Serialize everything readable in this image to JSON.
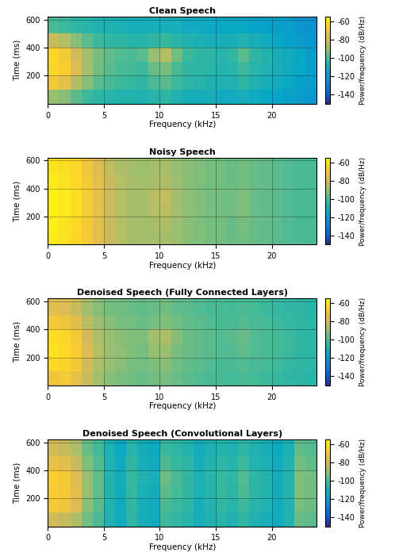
{
  "chart_data": [
    {
      "type": "heatmap",
      "title": "Clean Speech",
      "x_label": "Frequency (kHz)",
      "y_label": "Time (ms)",
      "xlim": [
        0,
        24
      ],
      "ylim": [
        0,
        620
      ],
      "xticks": [
        0,
        5,
        10,
        15,
        20
      ],
      "yticks": [
        200,
        400,
        600
      ],
      "grid": true,
      "x_edges": [
        0,
        1,
        2,
        3,
        4,
        5,
        6,
        7,
        8,
        9,
        10,
        11,
        12,
        13,
        14,
        15,
        16,
        17,
        18,
        19,
        20,
        21,
        22,
        23,
        24
      ],
      "y_edges": [
        0,
        100,
        200,
        300,
        400,
        500,
        620
      ],
      "cells": [
        [
          -90,
          -92,
          -98,
          -102,
          -105,
          -106,
          -107,
          -107,
          -108,
          -106,
          -105,
          -108,
          -110,
          -110,
          -110,
          -112,
          -112,
          -110,
          -112,
          -114,
          -115,
          -116,
          -118,
          -120
        ],
        [
          -70,
          -75,
          -85,
          -92,
          -98,
          -100,
          -102,
          -103,
          -104,
          -100,
          -98,
          -102,
          -105,
          -106,
          -108,
          -108,
          -108,
          -105,
          -108,
          -110,
          -112,
          -114,
          -116,
          -118
        ],
        [
          -65,
          -68,
          -78,
          -88,
          -95,
          -98,
          -100,
          -101,
          -102,
          -96,
          -94,
          -100,
          -104,
          -105,
          -106,
          -107,
          -106,
          -102,
          -106,
          -108,
          -110,
          -112,
          -114,
          -118
        ],
        [
          -65,
          -70,
          -80,
          -88,
          -94,
          -97,
          -99,
          -100,
          -98,
          -90,
          -85,
          -95,
          -102,
          -104,
          -105,
          -106,
          -104,
          -98,
          -104,
          -107,
          -110,
          -112,
          -114,
          -118
        ],
        [
          -82,
          -85,
          -92,
          -98,
          -102,
          -104,
          -105,
          -106,
          -106,
          -104,
          -103,
          -106,
          -108,
          -109,
          -110,
          -110,
          -110,
          -108,
          -110,
          -112,
          -114,
          -116,
          -118,
          -120
        ],
        [
          -100,
          -102,
          -104,
          -106,
          -108,
          -108,
          -109,
          -110,
          -110,
          -110,
          -110,
          -110,
          -112,
          -112,
          -113,
          -114,
          -114,
          -114,
          -115,
          -116,
          -117,
          -118,
          -120,
          -122
        ]
      ],
      "colorbar_label": "Power/frequency (dB/Hz)",
      "colorbar_range": [
        -150,
        -55
      ],
      "colorbar_ticks": [
        -140,
        -120,
        -100,
        -80,
        -60
      ]
    },
    {
      "type": "heatmap",
      "title": "Noisy Speech",
      "x_label": "Frequency (kHz)",
      "y_label": "Time (ms)",
      "xlim": [
        0,
        24
      ],
      "ylim": [
        0,
        620
      ],
      "xticks": [
        0,
        5,
        10,
        15,
        20
      ],
      "yticks": [
        200,
        400,
        600
      ],
      "grid": true,
      "x_edges": [
        0,
        1,
        2,
        3,
        4,
        5,
        6,
        7,
        8,
        9,
        10,
        11,
        12,
        13,
        14,
        15,
        16,
        17,
        18,
        19,
        20,
        21,
        22,
        23,
        24
      ],
      "y_edges": [
        0,
        100,
        200,
        300,
        400,
        500,
        620
      ],
      "cells": [
        [
          -60,
          -62,
          -65,
          -70,
          -76,
          -82,
          -85,
          -87,
          -88,
          -88,
          -87,
          -89,
          -92,
          -93,
          -94,
          -95,
          -96,
          -95,
          -96,
          -97,
          -98,
          -99,
          -100,
          -100
        ],
        [
          -59,
          -61,
          -64,
          -70,
          -76,
          -82,
          -85,
          -87,
          -88,
          -87,
          -86,
          -89,
          -92,
          -93,
          -94,
          -95,
          -96,
          -94,
          -96,
          -97,
          -98,
          -99,
          -100,
          -100
        ],
        [
          -58,
          -60,
          -63,
          -69,
          -75,
          -81,
          -85,
          -87,
          -88,
          -85,
          -84,
          -88,
          -91,
          -93,
          -94,
          -95,
          -95,
          -93,
          -96,
          -97,
          -98,
          -99,
          -100,
          -100
        ],
        [
          -58,
          -60,
          -63,
          -69,
          -75,
          -81,
          -85,
          -87,
          -87,
          -84,
          -83,
          -88,
          -91,
          -93,
          -94,
          -95,
          -95,
          -93,
          -96,
          -97,
          -98,
          -99,
          -100,
          -100
        ],
        [
          -60,
          -62,
          -64,
          -70,
          -76,
          -82,
          -85,
          -87,
          -88,
          -87,
          -86,
          -89,
          -92,
          -93,
          -94,
          -95,
          -96,
          -95,
          -96,
          -97,
          -98,
          -99,
          -100,
          -100
        ],
        [
          -61,
          -63,
          -65,
          -71,
          -77,
          -83,
          -86,
          -88,
          -89,
          -88,
          -87,
          -90,
          -92,
          -93,
          -94,
          -95,
          -96,
          -95,
          -96,
          -97,
          -98,
          -99,
          -100,
          -100
        ]
      ],
      "colorbar_label": "Power/frequency (dB/Hz)",
      "colorbar_range": [
        -150,
        -55
      ],
      "colorbar_ticks": [
        -140,
        -120,
        -100,
        -80,
        -60
      ]
    },
    {
      "type": "heatmap",
      "title": "Denoised Speech (Fully Connected Layers)",
      "x_label": "Frequency (kHz)",
      "y_label": "Time (ms)",
      "xlim": [
        0,
        24
      ],
      "ylim": [
        0,
        620
      ],
      "xticks": [
        0,
        5,
        10,
        15,
        20
      ],
      "yticks": [
        200,
        400,
        600
      ],
      "grid": true,
      "x_edges": [
        0,
        1,
        2,
        3,
        4,
        5,
        6,
        7,
        8,
        9,
        10,
        11,
        12,
        13,
        14,
        15,
        16,
        17,
        18,
        19,
        20,
        21,
        22,
        23,
        24
      ],
      "y_edges": [
        0,
        100,
        200,
        300,
        400,
        500,
        620
      ],
      "cells": [
        [
          -72,
          -70,
          -75,
          -82,
          -88,
          -92,
          -94,
          -95,
          -96,
          -95,
          -94,
          -96,
          -98,
          -99,
          -100,
          -100,
          -101,
          -100,
          -101,
          -102,
          -103,
          -104,
          -105,
          -106
        ],
        [
          -64,
          -66,
          -70,
          -80,
          -86,
          -90,
          -92,
          -94,
          -95,
          -93,
          -92,
          -95,
          -97,
          -98,
          -99,
          -100,
          -100,
          -99,
          -100,
          -101,
          -102,
          -103,
          -104,
          -105
        ],
        [
          -62,
          -64,
          -68,
          -78,
          -85,
          -89,
          -91,
          -93,
          -94,
          -90,
          -89,
          -94,
          -96,
          -97,
          -98,
          -99,
          -99,
          -97,
          -99,
          -100,
          -101,
          -102,
          -104,
          -105
        ],
        [
          -63,
          -65,
          -70,
          -80,
          -86,
          -90,
          -92,
          -93,
          -93,
          -88,
          -86,
          -92,
          -96,
          -97,
          -98,
          -99,
          -98,
          -96,
          -99,
          -100,
          -101,
          -102,
          -104,
          -105
        ],
        [
          -70,
          -72,
          -76,
          -84,
          -89,
          -92,
          -94,
          -95,
          -96,
          -94,
          -93,
          -95,
          -97,
          -98,
          -99,
          -100,
          -100,
          -99,
          -100,
          -101,
          -102,
          -103,
          -104,
          -105
        ],
        [
          -76,
          -78,
          -82,
          -88,
          -92,
          -94,
          -95,
          -96,
          -97,
          -96,
          -95,
          -97,
          -98,
          -99,
          -100,
          -100,
          -101,
          -100,
          -101,
          -102,
          -103,
          -104,
          -105,
          -106
        ]
      ],
      "colorbar_label": "Power/frequency (dB/Hz)",
      "colorbar_range": [
        -150,
        -55
      ],
      "colorbar_ticks": [
        -140,
        -120,
        -100,
        -80,
        -60
      ]
    },
    {
      "type": "heatmap",
      "title": "Denoised Speech (Convolutional Layers)",
      "x_label": "Frequency (kHz)",
      "y_label": "Time (ms)",
      "xlim": [
        0,
        24
      ],
      "ylim": [
        0,
        620
      ],
      "xticks": [
        0,
        5,
        10,
        15,
        20
      ],
      "yticks": [
        200,
        400,
        600
      ],
      "grid": true,
      "x_edges": [
        0,
        1,
        2,
        3,
        4,
        5,
        6,
        7,
        8,
        9,
        10,
        11,
        12,
        13,
        14,
        15,
        16,
        17,
        18,
        19,
        20,
        21,
        22,
        23,
        24
      ],
      "y_edges": [
        0,
        100,
        200,
        300,
        400,
        500,
        620
      ],
      "cells": [
        [
          -80,
          -82,
          -86,
          -95,
          -100,
          -108,
          -112,
          -105,
          -110,
          -112,
          -102,
          -104,
          -106,
          -110,
          -108,
          -106,
          -108,
          -104,
          -108,
          -110,
          -112,
          -108,
          -96,
          -98
        ],
        [
          -70,
          -72,
          -78,
          -92,
          -98,
          -108,
          -112,
          -104,
          -110,
          -112,
          -100,
          -102,
          -105,
          -110,
          -107,
          -104,
          -106,
          -102,
          -106,
          -108,
          -112,
          -108,
          -94,
          -96
        ],
        [
          -68,
          -70,
          -76,
          -90,
          -97,
          -107,
          -111,
          -103,
          -109,
          -111,
          -98,
          -101,
          -104,
          -109,
          -106,
          -103,
          -105,
          -100,
          -105,
          -107,
          -111,
          -107,
          -93,
          -95
        ],
        [
          -67,
          -70,
          -78,
          -90,
          -97,
          -107,
          -111,
          -103,
          -108,
          -110,
          -96,
          -100,
          -104,
          -109,
          -106,
          -103,
          -104,
          -99,
          -105,
          -107,
          -111,
          -107,
          -93,
          -95
        ],
        [
          -74,
          -76,
          -82,
          -93,
          -99,
          -108,
          -112,
          -104,
          -110,
          -112,
          -100,
          -103,
          -105,
          -110,
          -107,
          -105,
          -106,
          -102,
          -107,
          -109,
          -112,
          -108,
          -95,
          -97
        ],
        [
          -80,
          -82,
          -86,
          -96,
          -101,
          -109,
          -113,
          -106,
          -111,
          -113,
          -103,
          -105,
          -107,
          -111,
          -109,
          -107,
          -108,
          -105,
          -108,
          -110,
          -113,
          -109,
          -97,
          -99
        ]
      ],
      "colorbar_label": "Power/frequency (dB/Hz)",
      "colorbar_range": [
        -150,
        -55
      ],
      "colorbar_ticks": [
        -140,
        -120,
        -100,
        -80,
        -60
      ]
    }
  ]
}
